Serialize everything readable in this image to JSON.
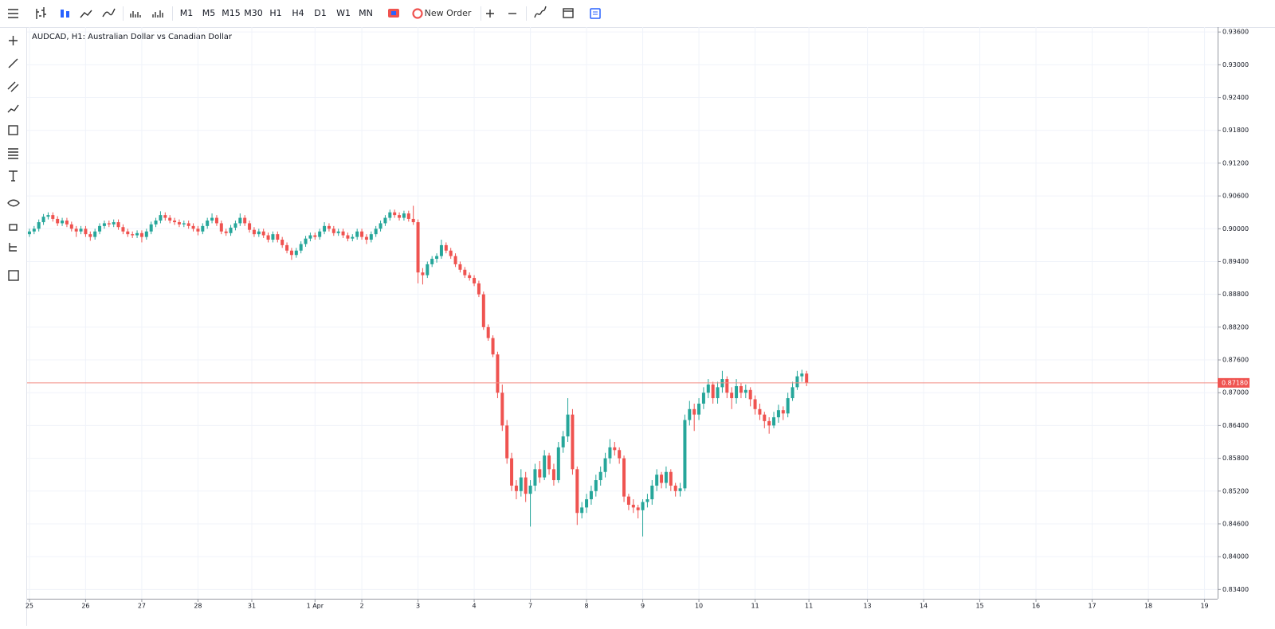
{
  "toolbar": {
    "timeframes": [
      {
        "label": "M1",
        "active": false
      },
      {
        "label": "M5",
        "active": false
      },
      {
        "label": "M15",
        "active": false
      },
      {
        "label": "M30",
        "active": false
      },
      {
        "label": "H1",
        "active": true
      },
      {
        "label": "H4",
        "active": false
      },
      {
        "label": "D1",
        "active": false
      },
      {
        "label": "W1",
        "active": false
      },
      {
        "label": "MN",
        "active": false
      }
    ],
    "new_order": "New Order"
  },
  "chart_data": {
    "type": "candlestick",
    "title": "AUDCAD, H1: Australian Dollar vs Canadian Dollar",
    "up_color": "#26a69a",
    "down_color": "#ef5350",
    "grid": true,
    "ylim": [
      0.8323,
      0.9369
    ],
    "yticks": [
      {
        "value": 0.834,
        "label": "0.83400"
      },
      {
        "value": 0.84,
        "label": "0.84000"
      },
      {
        "value": 0.846,
        "label": "0.84600"
      },
      {
        "value": 0.852,
        "label": "0.85200"
      },
      {
        "value": 0.858,
        "label": "0.85800"
      },
      {
        "value": 0.864,
        "label": "0.86400"
      },
      {
        "value": 0.87,
        "label": "0.87000"
      },
      {
        "value": 0.876,
        "label": "0.87600"
      },
      {
        "value": 0.882,
        "label": "0.88200"
      },
      {
        "value": 0.888,
        "label": "0.88800"
      },
      {
        "value": 0.894,
        "label": "0.89400"
      },
      {
        "value": 0.9,
        "label": "0.90000"
      },
      {
        "value": 0.906,
        "label": "0.90600"
      },
      {
        "value": 0.912,
        "label": "0.91200"
      },
      {
        "value": 0.918,
        "label": "0.91800"
      },
      {
        "value": 0.924,
        "label": "0.92400"
      },
      {
        "value": 0.93,
        "label": "0.93000"
      },
      {
        "value": 0.936,
        "label": "0.93600"
      }
    ],
    "xlim": [
      -0.5,
      253.8
    ],
    "xticks": [
      {
        "value": 0,
        "label": "25"
      },
      {
        "value": 12,
        "label": "26"
      },
      {
        "value": 24,
        "label": "27"
      },
      {
        "value": 36,
        "label": "28"
      },
      {
        "value": 47.5,
        "label": "31"
      },
      {
        "value": 61,
        "label": "1 Apr"
      },
      {
        "value": 71,
        "label": "2"
      },
      {
        "value": 83,
        "label": "3"
      },
      {
        "value": 95,
        "label": "4"
      },
      {
        "value": 107,
        "label": "7"
      },
      {
        "value": 119,
        "label": "8"
      },
      {
        "value": 131,
        "label": "9"
      },
      {
        "value": 143,
        "label": "10"
      },
      {
        "value": 155,
        "label": "11"
      },
      {
        "value": 166.5,
        "label": "11"
      },
      {
        "value": 179,
        "label": "13"
      },
      {
        "value": 191,
        "label": "14"
      },
      {
        "value": 203,
        "label": "15"
      },
      {
        "value": 215,
        "label": "16"
      },
      {
        "value": 227,
        "label": "17"
      },
      {
        "value": 239,
        "label": "18"
      },
      {
        "value": 251,
        "label": "19"
      }
    ],
    "current_price": {
      "value": 0.8718,
      "label": "0.87180"
    },
    "ohlc": [
      [
        0.899,
        0.9,
        0.8985,
        0.8995
      ],
      [
        0.8995,
        0.9005,
        0.899,
        0.9
      ],
      [
        0.9,
        0.9017,
        0.8995,
        0.9012
      ],
      [
        0.9012,
        0.9027,
        0.9007,
        0.9022
      ],
      [
        0.9022,
        0.903,
        0.9017,
        0.9025
      ],
      [
        0.9025,
        0.903,
        0.9013,
        0.9018
      ],
      [
        0.9018,
        0.9023,
        0.9005,
        0.901
      ],
      [
        0.901,
        0.902,
        0.9005,
        0.9015
      ],
      [
        0.9015,
        0.902,
        0.9003,
        0.9008
      ],
      [
        0.9008,
        0.9013,
        0.8995,
        0.9
      ],
      [
        0.9,
        0.9005,
        0.8985,
        0.8995
      ],
      [
        0.8995,
        0.9005,
        0.899,
        0.9
      ],
      [
        0.9,
        0.9005,
        0.8985,
        0.899
      ],
      [
        0.899,
        0.8995,
        0.8978,
        0.8985
      ],
      [
        0.8985,
        0.9,
        0.898,
        0.8995
      ],
      [
        0.8995,
        0.901,
        0.899,
        0.9005
      ],
      [
        0.9005,
        0.9015,
        0.9,
        0.901
      ],
      [
        0.901,
        0.9015,
        0.9003,
        0.9008
      ],
      [
        0.9008,
        0.9017,
        0.9003,
        0.9012
      ],
      [
        0.9012,
        0.9017,
        0.8998,
        0.9003
      ],
      [
        0.9003,
        0.9008,
        0.899,
        0.8995
      ],
      [
        0.8995,
        0.9,
        0.8985,
        0.899
      ],
      [
        0.899,
        0.8995,
        0.8983,
        0.8988
      ],
      [
        0.8988,
        0.8997,
        0.8983,
        0.8992
      ],
      [
        0.8992,
        0.8997,
        0.8975,
        0.8985
      ],
      [
        0.8985,
        0.9,
        0.898,
        0.8995
      ],
      [
        0.8995,
        0.9013,
        0.899,
        0.9008
      ],
      [
        0.9008,
        0.902,
        0.9003,
        0.9015
      ],
      [
        0.9015,
        0.9032,
        0.901,
        0.9025
      ],
      [
        0.9025,
        0.903,
        0.9015,
        0.902
      ],
      [
        0.902,
        0.9025,
        0.901,
        0.9015
      ],
      [
        0.9015,
        0.902,
        0.9007,
        0.9012
      ],
      [
        0.9012,
        0.9017,
        0.9003,
        0.9008
      ],
      [
        0.9008,
        0.9015,
        0.9003,
        0.901
      ],
      [
        0.901,
        0.9015,
        0.9,
        0.9005
      ],
      [
        0.9005,
        0.901,
        0.8995,
        0.9
      ],
      [
        0.9,
        0.9005,
        0.8988,
        0.8995
      ],
      [
        0.8995,
        0.901,
        0.899,
        0.9005
      ],
      [
        0.9005,
        0.902,
        0.9,
        0.9015
      ],
      [
        0.9015,
        0.9028,
        0.901,
        0.902
      ],
      [
        0.902,
        0.9025,
        0.9005,
        0.901
      ],
      [
        0.901,
        0.9015,
        0.899,
        0.8995
      ],
      [
        0.8995,
        0.9,
        0.8987,
        0.8992
      ],
      [
        0.8992,
        0.9007,
        0.8987,
        0.9002
      ],
      [
        0.9002,
        0.9015,
        0.8997,
        0.901
      ],
      [
        0.901,
        0.9028,
        0.9005,
        0.902
      ],
      [
        0.902,
        0.9025,
        0.9005,
        0.901
      ],
      [
        0.901,
        0.9015,
        0.8993,
        0.8998
      ],
      [
        0.8998,
        0.9003,
        0.8985,
        0.899
      ],
      [
        0.899,
        0.9,
        0.8985,
        0.8995
      ],
      [
        0.8995,
        0.9,
        0.8983,
        0.8988
      ],
      [
        0.8988,
        0.8993,
        0.8975,
        0.898
      ],
      [
        0.898,
        0.8995,
        0.8975,
        0.899
      ],
      [
        0.899,
        0.8995,
        0.8975,
        0.898
      ],
      [
        0.898,
        0.8985,
        0.8965,
        0.897
      ],
      [
        0.897,
        0.8975,
        0.8955,
        0.896
      ],
      [
        0.896,
        0.8965,
        0.8943,
        0.8952
      ],
      [
        0.8952,
        0.8965,
        0.8947,
        0.896
      ],
      [
        0.896,
        0.8977,
        0.8955,
        0.8972
      ],
      [
        0.8972,
        0.8987,
        0.8967,
        0.8982
      ],
      [
        0.8982,
        0.8993,
        0.8977,
        0.8988
      ],
      [
        0.8988,
        0.8993,
        0.898,
        0.8985
      ],
      [
        0.8985,
        0.9,
        0.898,
        0.8995
      ],
      [
        0.8995,
        0.9012,
        0.899,
        0.9005
      ],
      [
        0.9005,
        0.901,
        0.8995,
        0.9
      ],
      [
        0.9,
        0.9005,
        0.8987,
        0.8992
      ],
      [
        0.8992,
        0.9,
        0.8987,
        0.8995
      ],
      [
        0.8995,
        0.9,
        0.8983,
        0.8988
      ],
      [
        0.8988,
        0.8993,
        0.8977,
        0.8982
      ],
      [
        0.8982,
        0.899,
        0.8977,
        0.8985
      ],
      [
        0.8985,
        0.9,
        0.898,
        0.8995
      ],
      [
        0.8995,
        0.9,
        0.898,
        0.8985
      ],
      [
        0.8985,
        0.899,
        0.8972,
        0.898
      ],
      [
        0.898,
        0.8995,
        0.8975,
        0.899
      ],
      [
        0.899,
        0.9005,
        0.8985,
        0.9
      ],
      [
        0.9,
        0.9015,
        0.8995,
        0.901
      ],
      [
        0.901,
        0.9025,
        0.9005,
        0.902
      ],
      [
        0.902,
        0.9035,
        0.9015,
        0.903
      ],
      [
        0.903,
        0.9035,
        0.902,
        0.9025
      ],
      [
        0.9025,
        0.903,
        0.9015,
        0.902
      ],
      [
        0.902,
        0.9033,
        0.9015,
        0.9028
      ],
      [
        0.9028,
        0.9033,
        0.9013,
        0.9018
      ],
      [
        0.9018,
        0.9042,
        0.9007,
        0.9012
      ],
      [
        0.9012,
        0.9017,
        0.89,
        0.892
      ],
      [
        0.892,
        0.8928,
        0.8898,
        0.8915
      ],
      [
        0.8915,
        0.894,
        0.891,
        0.8935
      ],
      [
        0.8935,
        0.895,
        0.893,
        0.8945
      ],
      [
        0.8945,
        0.8955,
        0.8938,
        0.895
      ],
      [
        0.895,
        0.898,
        0.8945,
        0.897
      ],
      [
        0.897,
        0.8975,
        0.8955,
        0.896
      ],
      [
        0.896,
        0.8965,
        0.8945,
        0.895
      ],
      [
        0.895,
        0.8955,
        0.893,
        0.8935
      ],
      [
        0.8935,
        0.894,
        0.892,
        0.8925
      ],
      [
        0.8925,
        0.893,
        0.891,
        0.8915
      ],
      [
        0.8915,
        0.892,
        0.8905,
        0.891
      ],
      [
        0.891,
        0.8915,
        0.8895,
        0.89
      ],
      [
        0.89,
        0.8905,
        0.8875,
        0.888
      ],
      [
        0.888,
        0.8885,
        0.8815,
        0.882
      ],
      [
        0.882,
        0.8825,
        0.8795,
        0.88
      ],
      [
        0.88,
        0.8805,
        0.8765,
        0.877
      ],
      [
        0.877,
        0.8775,
        0.869,
        0.87
      ],
      [
        0.87,
        0.8715,
        0.863,
        0.864
      ],
      [
        0.864,
        0.865,
        0.857,
        0.858
      ],
      [
        0.858,
        0.859,
        0.852,
        0.853
      ],
      [
        0.853,
        0.854,
        0.8505,
        0.852
      ],
      [
        0.852,
        0.856,
        0.851,
        0.8545
      ],
      [
        0.8545,
        0.8555,
        0.85,
        0.8515
      ],
      [
        0.8515,
        0.854,
        0.8455,
        0.853
      ],
      [
        0.853,
        0.857,
        0.852,
        0.856
      ],
      [
        0.856,
        0.8575,
        0.8535,
        0.8545
      ],
      [
        0.8545,
        0.8595,
        0.854,
        0.8585
      ],
      [
        0.8585,
        0.859,
        0.855,
        0.856
      ],
      [
        0.856,
        0.857,
        0.853,
        0.854
      ],
      [
        0.854,
        0.861,
        0.8535,
        0.86
      ],
      [
        0.86,
        0.863,
        0.859,
        0.862
      ],
      [
        0.862,
        0.869,
        0.861,
        0.866
      ],
      [
        0.866,
        0.867,
        0.855,
        0.856
      ],
      [
        0.856,
        0.8565,
        0.8458,
        0.848
      ],
      [
        0.848,
        0.85,
        0.847,
        0.849
      ],
      [
        0.849,
        0.8515,
        0.848,
        0.8505
      ],
      [
        0.8505,
        0.853,
        0.8495,
        0.852
      ],
      [
        0.852,
        0.855,
        0.851,
        0.854
      ],
      [
        0.854,
        0.8565,
        0.853,
        0.8555
      ],
      [
        0.8555,
        0.859,
        0.8545,
        0.858
      ],
      [
        0.858,
        0.8615,
        0.857,
        0.86
      ],
      [
        0.86,
        0.861,
        0.8585,
        0.8595
      ],
      [
        0.8595,
        0.86,
        0.857,
        0.858
      ],
      [
        0.858,
        0.8585,
        0.85,
        0.851
      ],
      [
        0.851,
        0.8515,
        0.8485,
        0.8495
      ],
      [
        0.8495,
        0.8505,
        0.848,
        0.849
      ],
      [
        0.849,
        0.8495,
        0.847,
        0.8485
      ],
      [
        0.8485,
        0.8505,
        0.8437,
        0.85
      ],
      [
        0.85,
        0.8515,
        0.849,
        0.8505
      ],
      [
        0.8505,
        0.854,
        0.8495,
        0.853
      ],
      [
        0.853,
        0.856,
        0.852,
        0.855
      ],
      [
        0.855,
        0.8555,
        0.8525,
        0.8535
      ],
      [
        0.8535,
        0.8565,
        0.8525,
        0.8555
      ],
      [
        0.8555,
        0.856,
        0.852,
        0.853
      ],
      [
        0.853,
        0.8535,
        0.851,
        0.852
      ],
      [
        0.852,
        0.8535,
        0.851,
        0.8525
      ],
      [
        0.8525,
        0.866,
        0.852,
        0.865
      ],
      [
        0.865,
        0.8685,
        0.864,
        0.867
      ],
      [
        0.867,
        0.868,
        0.863,
        0.866
      ],
      [
        0.866,
        0.869,
        0.865,
        0.868
      ],
      [
        0.868,
        0.871,
        0.867,
        0.87
      ],
      [
        0.87,
        0.8725,
        0.869,
        0.8715
      ],
      [
        0.8715,
        0.872,
        0.868,
        0.869
      ],
      [
        0.869,
        0.872,
        0.868,
        0.871
      ],
      [
        0.871,
        0.874,
        0.87,
        0.8725
      ],
      [
        0.8725,
        0.873,
        0.869,
        0.87
      ],
      [
        0.87,
        0.871,
        0.867,
        0.869
      ],
      [
        0.869,
        0.8725,
        0.868,
        0.8712
      ],
      [
        0.8712,
        0.8718,
        0.869,
        0.87
      ],
      [
        0.87,
        0.8715,
        0.869,
        0.8705
      ],
      [
        0.8705,
        0.871,
        0.8675,
        0.8688
      ],
      [
        0.8688,
        0.8695,
        0.866,
        0.867
      ],
      [
        0.867,
        0.868,
        0.865,
        0.866
      ],
      [
        0.866,
        0.8665,
        0.8635,
        0.8648
      ],
      [
        0.8648,
        0.8655,
        0.8625,
        0.864
      ],
      [
        0.864,
        0.8665,
        0.8635,
        0.8655
      ],
      [
        0.8655,
        0.8678,
        0.8645,
        0.8668
      ],
      [
        0.8668,
        0.8675,
        0.865,
        0.8662
      ],
      [
        0.8662,
        0.87,
        0.8655,
        0.869
      ],
      [
        0.869,
        0.872,
        0.8685,
        0.871
      ],
      [
        0.871,
        0.874,
        0.8705,
        0.873
      ],
      [
        0.873,
        0.8742,
        0.872,
        0.8735
      ],
      [
        0.8735,
        0.874,
        0.8712,
        0.8718
      ]
    ]
  }
}
